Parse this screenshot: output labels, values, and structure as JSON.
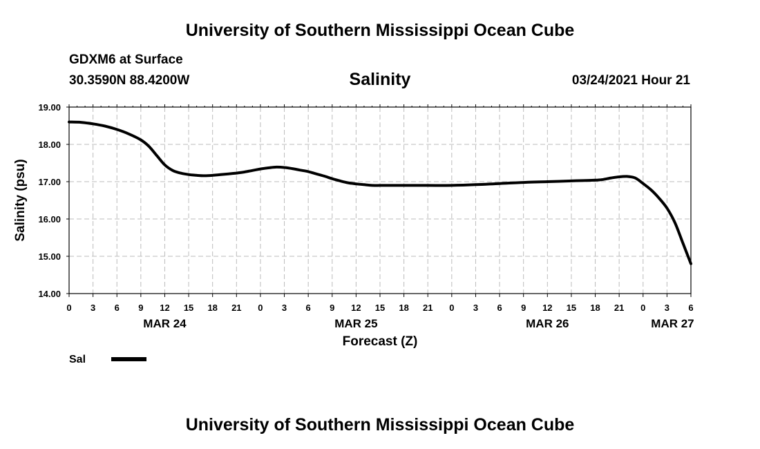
{
  "header": {
    "top_title": "University of Southern Mississippi Ocean Cube",
    "station": "GDXM6 at Surface",
    "coords": "30.3590N 88.4200W",
    "variable": "Salinity",
    "datetime": "03/24/2021 Hour 21",
    "bottom_title": "University of Southern Mississippi Ocean Cube"
  },
  "legend": {
    "label": "Sal",
    "color": "#000000"
  },
  "chart_data": {
    "type": "line",
    "title": "Salinity",
    "xlabel": "Forecast (Z)",
    "ylabel": "Salinity (psu)",
    "ylim": [
      14.0,
      19.0
    ],
    "xlim": [
      0,
      78
    ],
    "grid": true,
    "y_ticks": [
      "14.00",
      "15.00",
      "16.00",
      "17.00",
      "18.00",
      "19.00"
    ],
    "y_tick_values": [
      14,
      15,
      16,
      17,
      18,
      19
    ],
    "x_tick_labels": [
      "0",
      "3",
      "6",
      "9",
      "12",
      "15",
      "18",
      "21",
      "0",
      "3",
      "6",
      "9",
      "12",
      "15",
      "18",
      "21",
      "0",
      "3",
      "6",
      "9",
      "12",
      "15",
      "18",
      "21",
      "0",
      "3",
      "6"
    ],
    "date_labels": [
      {
        "label": "MAR 24",
        "hour": 12
      },
      {
        "label": "MAR 25",
        "hour": 36
      },
      {
        "label": "MAR 26",
        "hour": 60
      },
      {
        "label": "MAR 27",
        "hour": 75.7
      }
    ],
    "series": [
      {
        "name": "Sal",
        "x": [
          0,
          1.5,
          3,
          4.5,
          6,
          7.5,
          9,
          10,
          11,
          12,
          13,
          14,
          15,
          16,
          17,
          18,
          19,
          20,
          21,
          22,
          23,
          24,
          25,
          26,
          27,
          28,
          29,
          30,
          31,
          32,
          33,
          34,
          35,
          36,
          37,
          38,
          39,
          40,
          42,
          45,
          48,
          51,
          54,
          57,
          60,
          63,
          66,
          67,
          68,
          69,
          70,
          71,
          72,
          73,
          74,
          75,
          76,
          77,
          78
        ],
        "values": [
          18.6,
          18.59,
          18.55,
          18.49,
          18.4,
          18.28,
          18.12,
          17.95,
          17.7,
          17.45,
          17.3,
          17.23,
          17.19,
          17.17,
          17.16,
          17.17,
          17.19,
          17.21,
          17.23,
          17.26,
          17.3,
          17.34,
          17.37,
          17.39,
          17.38,
          17.35,
          17.31,
          17.27,
          17.21,
          17.15,
          17.08,
          17.02,
          16.97,
          16.94,
          16.92,
          16.9,
          16.9,
          16.9,
          16.9,
          16.9,
          16.9,
          16.92,
          16.95,
          16.98,
          17.0,
          17.02,
          17.04,
          17.06,
          17.1,
          17.13,
          17.14,
          17.1,
          16.95,
          16.78,
          16.56,
          16.29,
          15.9,
          15.35,
          14.8
        ]
      }
    ]
  }
}
